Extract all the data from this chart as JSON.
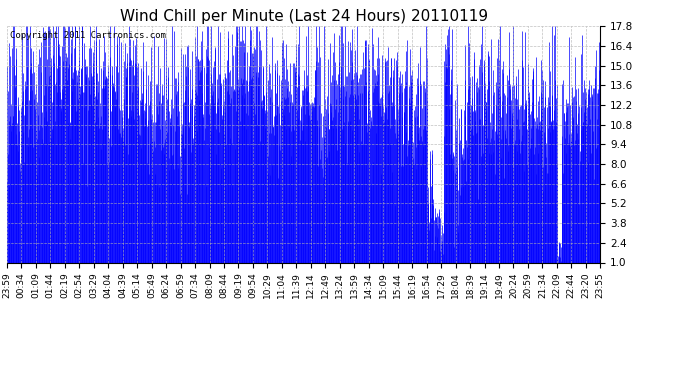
{
  "title": "Wind Chill per Minute (Last 24 Hours) 20110119",
  "copyright": "Copyright 2011 Cartronics.com",
  "color": "#0000ff",
  "background": "#ffffff",
  "grid_color": "#b0b0b0",
  "yticks": [
    1.0,
    2.4,
    3.8,
    5.2,
    6.6,
    8.0,
    9.4,
    10.8,
    12.2,
    13.6,
    15.0,
    16.4,
    17.8
  ],
  "ymin": 1.0,
  "ymax": 17.8,
  "xtick_labels": [
    "23:59",
    "00:34",
    "01:09",
    "01:44",
    "02:19",
    "02:54",
    "03:29",
    "04:04",
    "04:39",
    "05:14",
    "05:49",
    "06:24",
    "06:59",
    "07:34",
    "08:09",
    "08:44",
    "09:19",
    "09:54",
    "10:29",
    "11:04",
    "11:39",
    "12:14",
    "12:49",
    "13:24",
    "13:59",
    "14:34",
    "15:09",
    "15:44",
    "16:19",
    "16:54",
    "17:29",
    "18:04",
    "18:39",
    "19:14",
    "19:49",
    "20:24",
    "20:59",
    "21:34",
    "22:09",
    "22:44",
    "23:20",
    "23:55"
  ],
  "title_fontsize": 11,
  "copyright_fontsize": 6.5,
  "tick_fontsize": 6.5,
  "ytick_fontsize": 7.5
}
